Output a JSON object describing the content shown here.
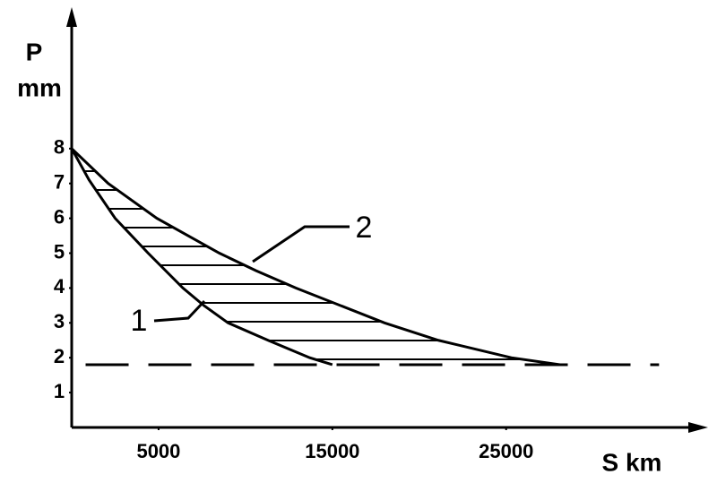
{
  "chart_data": {
    "type": "line",
    "y_label_lines": [
      "P",
      "mm"
    ],
    "x_label": "S km",
    "xlim": [
      0,
      36000
    ],
    "ylim": [
      0,
      11.8
    ],
    "xticks": [
      5000,
      15000,
      25000
    ],
    "yticks": [
      1,
      2,
      3,
      4,
      5,
      6,
      7,
      8
    ],
    "color": "#000000",
    "hatched_between_curves": true,
    "series": [
      {
        "name": "1",
        "x": [
          0,
          1000,
          2500,
          4400,
          6400,
          7600,
          9000,
          11300,
          13700,
          15000
        ],
        "values": [
          8,
          7.1,
          6,
          5,
          4,
          3.5,
          3,
          2.5,
          2,
          1.8
        ]
      },
      {
        "name": "2",
        "x": [
          0,
          2100,
          4900,
          8500,
          10600,
          12900,
          18000,
          21100,
          25300,
          28100
        ],
        "values": [
          8,
          7,
          6,
          5,
          4.5,
          4,
          3,
          2.5,
          2,
          1.8
        ]
      },
      {
        "x": [
          800,
          33800
        ],
        "values": [
          1.8,
          1.8
        ],
        "dashed": true
      }
    ]
  }
}
